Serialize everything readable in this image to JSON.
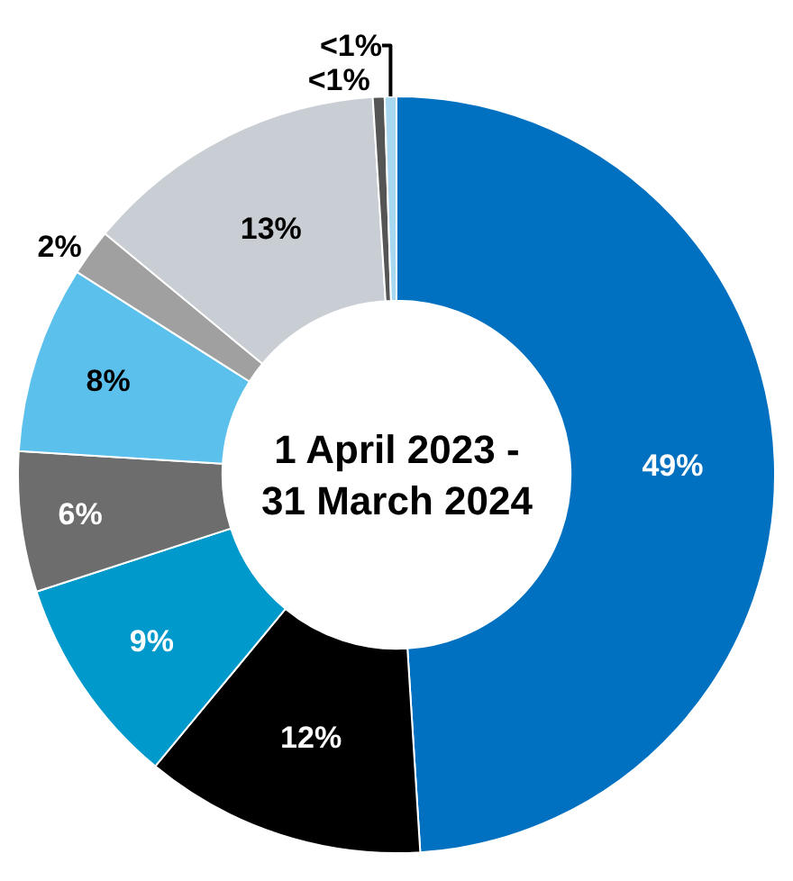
{
  "chart_data": {
    "type": "donut",
    "title": "1 April 2023 -\n31 March 2024",
    "categories": [
      null,
      null,
      null,
      null,
      null,
      null,
      null,
      null,
      null
    ],
    "values": [
      49,
      12,
      9,
      6,
      8,
      2,
      13,
      0.5,
      0.5
    ],
    "value_labels": [
      "49%",
      "12%",
      "9%",
      "6%",
      "8%",
      "2%",
      "13%",
      "<1%",
      "<1%"
    ],
    "colors": [
      "#0070c0",
      "#000000",
      "#0099cc",
      "#6d6d6d",
      "#5bc0eb",
      "#a0a0a0",
      "#c9ced4",
      "#555555",
      "#a8d8f0"
    ],
    "legend": false
  }
}
